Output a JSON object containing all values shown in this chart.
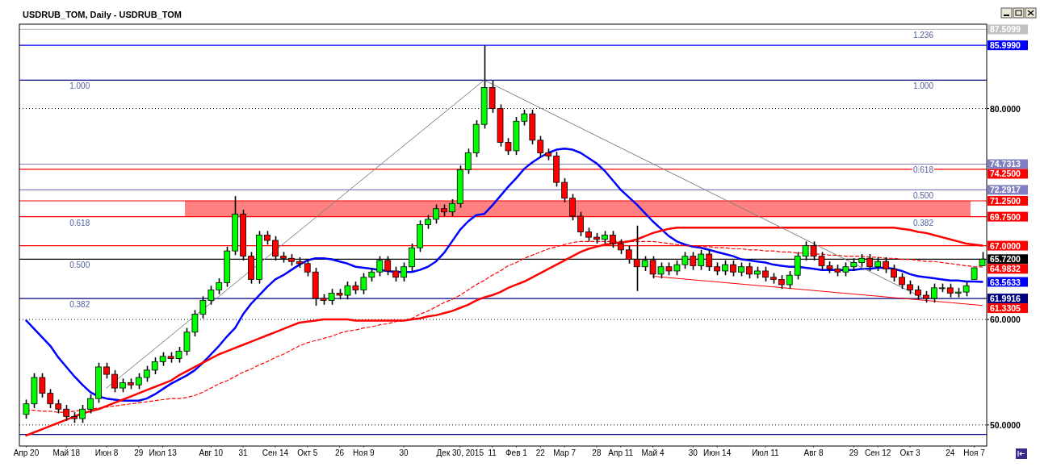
{
  "chart_data": {
    "type": "candlestick",
    "title": "USDRUB_TOM, Daily - USDRUB_TOM",
    "categories": [
      "Апр 20",
      null,
      null,
      null,
      null,
      "Май 18",
      null,
      null,
      null,
      null,
      "Июн 8",
      null,
      null,
      null,
      "29",
      null,
      null,
      "Июл 13",
      null,
      null,
      null,
      null,
      null,
      "Авг 10",
      null,
      null,
      null,
      "31",
      null,
      null,
      null,
      "Сен 14",
      null,
      null,
      null,
      "Окт 5",
      null,
      null,
      null,
      "26",
      null,
      null,
      "Ноя 9",
      null,
      null,
      null,
      null,
      "30",
      null,
      null,
      null,
      null,
      null,
      null,
      "Дек 30, 2015",
      null,
      null,
      null,
      "11",
      null,
      null,
      "Фев 1",
      null,
      null,
      "22",
      null,
      null,
      "Мар 7",
      null,
      null,
      null,
      "28",
      null,
      null,
      "Апр 11",
      null,
      null,
      null,
      "Май 4",
      null,
      null,
      null,
      null,
      "30",
      null,
      null,
      "Июн 14",
      null,
      null,
      null,
      null,
      null,
      "Июл 11",
      null,
      null,
      null,
      null,
      null,
      "Авг 8",
      null,
      null,
      null,
      null,
      "29",
      null,
      null,
      "Сен 12",
      null,
      null,
      null,
      "Окт 3",
      null,
      null,
      null,
      null,
      "24",
      null,
      null,
      "Ноя 7",
      null
    ],
    "ohlc": [
      [
        51.0,
        52.4,
        50.6,
        52.0
      ],
      [
        52.0,
        54.9,
        51.6,
        54.5
      ],
      [
        54.5,
        54.9,
        52.6,
        53.0
      ],
      [
        53.0,
        53.4,
        51.6,
        52.0
      ],
      [
        52.0,
        52.4,
        51.1,
        51.5
      ],
      [
        51.5,
        51.9,
        50.4,
        50.8
      ],
      [
        50.8,
        51.2,
        50.2,
        50.6
      ],
      [
        50.6,
        51.9,
        50.2,
        51.5
      ],
      [
        51.5,
        52.9,
        51.1,
        52.5
      ],
      [
        52.5,
        55.9,
        52.1,
        55.5
      ],
      [
        55.5,
        55.9,
        54.4,
        54.8
      ],
      [
        54.8,
        55.2,
        53.1,
        53.5
      ],
      [
        53.5,
        54.4,
        53.1,
        54.0
      ],
      [
        54.0,
        54.4,
        53.4,
        53.8
      ],
      [
        53.8,
        54.9,
        53.4,
        54.5
      ],
      [
        54.5,
        55.6,
        54.1,
        55.2
      ],
      [
        55.2,
        56.4,
        54.8,
        56.0
      ],
      [
        56.0,
        56.9,
        55.6,
        56.5
      ],
      [
        56.5,
        56.9,
        55.9,
        56.3
      ],
      [
        56.3,
        57.4,
        55.9,
        57.0
      ],
      [
        57.0,
        59.2,
        56.6,
        58.8
      ],
      [
        58.8,
        60.9,
        58.4,
        60.5
      ],
      [
        60.5,
        62.2,
        60.1,
        61.8
      ],
      [
        61.8,
        63.2,
        61.4,
        62.8
      ],
      [
        62.8,
        63.9,
        62.4,
        63.5
      ],
      [
        63.5,
        66.9,
        63.1,
        66.5
      ],
      [
        66.5,
        71.7,
        66.1,
        70.0
      ],
      [
        70.0,
        70.4,
        65.6,
        66.0
      ],
      [
        66.0,
        66.4,
        63.4,
        63.8
      ],
      [
        63.8,
        68.4,
        63.4,
        68.0
      ],
      [
        68.0,
        68.4,
        67.1,
        67.5
      ],
      [
        67.5,
        67.9,
        65.6,
        66.0
      ],
      [
        66.0,
        66.4,
        65.4,
        65.8
      ],
      [
        65.8,
        66.2,
        65.1,
        65.5
      ],
      [
        65.5,
        65.9,
        64.9,
        65.3
      ],
      [
        65.3,
        65.7,
        64.1,
        64.5
      ],
      [
        64.5,
        64.9,
        61.3,
        62.0
      ],
      [
        62.0,
        62.4,
        61.4,
        61.8
      ],
      [
        61.8,
        62.9,
        61.4,
        62.5
      ],
      [
        62.5,
        62.9,
        61.9,
        62.3
      ],
      [
        62.3,
        63.6,
        61.9,
        63.2
      ],
      [
        63.2,
        63.6,
        62.4,
        62.8
      ],
      [
        62.8,
        64.4,
        62.4,
        64.0
      ],
      [
        64.0,
        64.9,
        63.6,
        64.5
      ],
      [
        64.5,
        66.0,
        64.1,
        65.6
      ],
      [
        65.6,
        66.0,
        64.2,
        64.6
      ],
      [
        64.6,
        65.0,
        63.6,
        64.0
      ],
      [
        64.0,
        65.4,
        63.6,
        65.0
      ],
      [
        65.0,
        67.2,
        64.6,
        66.8
      ],
      [
        66.8,
        69.4,
        66.4,
        69.0
      ],
      [
        69.0,
        69.9,
        68.6,
        69.5
      ],
      [
        69.5,
        70.9,
        69.1,
        70.5
      ],
      [
        70.5,
        70.9,
        69.8,
        70.2
      ],
      [
        70.2,
        71.4,
        69.8,
        71.0
      ],
      [
        71.0,
        74.6,
        70.6,
        74.2
      ],
      [
        74.2,
        76.2,
        73.8,
        75.8
      ],
      [
        75.8,
        78.9,
        75.4,
        78.5
      ],
      [
        78.5,
        86.0,
        78.1,
        82.0
      ],
      [
        82.0,
        82.7,
        79.6,
        80.0
      ],
      [
        80.0,
        80.4,
        76.4,
        76.8
      ],
      [
        76.8,
        77.2,
        75.6,
        76.0
      ],
      [
        76.0,
        79.2,
        75.6,
        78.8
      ],
      [
        78.8,
        79.9,
        78.4,
        79.5
      ],
      [
        79.5,
        79.9,
        76.6,
        77.0
      ],
      [
        77.0,
        77.4,
        75.4,
        75.8
      ],
      [
        75.8,
        76.2,
        75.1,
        75.5
      ],
      [
        75.5,
        75.9,
        72.6,
        73.0
      ],
      [
        73.0,
        73.4,
        71.1,
        71.5
      ],
      [
        71.5,
        71.9,
        69.4,
        69.8
      ],
      [
        69.8,
        70.2,
        67.9,
        68.3
      ],
      [
        68.3,
        68.7,
        67.4,
        67.8
      ],
      [
        67.8,
        68.2,
        67.2,
        67.6
      ],
      [
        67.6,
        68.4,
        67.2,
        68.0
      ],
      [
        68.0,
        68.4,
        66.8,
        67.2
      ],
      [
        67.2,
        67.6,
        66.2,
        66.6
      ],
      [
        66.6,
        67.0,
        65.3,
        65.7
      ],
      [
        65.7,
        68.9,
        62.7,
        65.0
      ],
      [
        65.0,
        66.0,
        64.6,
        65.6
      ],
      [
        65.6,
        66.0,
        63.9,
        64.3
      ],
      [
        64.3,
        65.4,
        63.9,
        65.0
      ],
      [
        65.0,
        65.4,
        64.2,
        64.6
      ],
      [
        64.6,
        65.6,
        64.2,
        65.2
      ],
      [
        65.2,
        66.4,
        64.8,
        66.0
      ],
      [
        66.0,
        66.4,
        64.7,
        65.1
      ],
      [
        65.1,
        66.6,
        64.7,
        66.2
      ],
      [
        66.2,
        66.6,
        64.6,
        65.0
      ],
      [
        65.0,
        65.4,
        64.2,
        64.6
      ],
      [
        64.6,
        65.6,
        64.2,
        65.2
      ],
      [
        65.2,
        65.6,
        64.1,
        64.5
      ],
      [
        64.5,
        65.4,
        64.1,
        65.0
      ],
      [
        65.0,
        65.4,
        63.9,
        64.3
      ],
      [
        64.3,
        65.0,
        63.9,
        64.6
      ],
      [
        64.6,
        65.0,
        63.6,
        64.0
      ],
      [
        64.0,
        64.4,
        63.4,
        63.8
      ],
      [
        63.8,
        64.2,
        62.9,
        63.3
      ],
      [
        63.3,
        64.6,
        62.9,
        64.2
      ],
      [
        64.2,
        66.4,
        63.8,
        66.0
      ],
      [
        66.0,
        67.4,
        65.6,
        67.0
      ],
      [
        67.0,
        67.4,
        65.6,
        66.0
      ],
      [
        66.0,
        66.4,
        64.7,
        65.1
      ],
      [
        65.1,
        65.5,
        64.4,
        64.8
      ],
      [
        64.8,
        65.2,
        64.1,
        64.5
      ],
      [
        64.5,
        65.4,
        64.1,
        65.0
      ],
      [
        65.0,
        65.8,
        64.6,
        65.4
      ],
      [
        65.4,
        66.2,
        65.0,
        65.8
      ],
      [
        65.8,
        66.2,
        64.6,
        65.0
      ],
      [
        65.0,
        65.9,
        64.6,
        65.5
      ],
      [
        65.5,
        65.9,
        64.4,
        64.8
      ],
      [
        64.8,
        65.2,
        63.6,
        64.0
      ],
      [
        64.0,
        64.4,
        62.9,
        63.3
      ],
      [
        63.3,
        63.7,
        62.4,
        62.8
      ],
      [
        62.8,
        63.2,
        61.9,
        62.3
      ],
      [
        62.3,
        62.7,
        61.6,
        62.0
      ],
      [
        62.0,
        63.4,
        61.6,
        63.0
      ],
      [
        63.0,
        63.4,
        62.6,
        63.0
      ],
      [
        63.0,
        63.4,
        62.1,
        62.5
      ],
      [
        62.5,
        63.0,
        62.1,
        62.6
      ],
      [
        62.6,
        63.6,
        62.2,
        63.2
      ],
      [
        63.8,
        64.9,
        63.8,
        64.9
      ],
      [
        65.1,
        66.4,
        65.1,
        65.72
      ]
    ],
    "series": [
      {
        "type": "line",
        "color": "#0000ff",
        "values": [
          59.9,
          59.1,
          58.3,
          57.5,
          56.4,
          55.5,
          54.6,
          53.8,
          53.1,
          52.7,
          52.5,
          52.4,
          52.3,
          52.3,
          52.3,
          52.5,
          52.9,
          53.4,
          53.9,
          54.3,
          54.7,
          55.2,
          55.9,
          56.7,
          57.5,
          58.4,
          59.2,
          60.5,
          61.5,
          62.3,
          63.1,
          63.8,
          64.2,
          64.7,
          65.2,
          65.6,
          65.8,
          65.8,
          65.7,
          65.5,
          65.3,
          65.0,
          64.9,
          64.8,
          64.7,
          64.6,
          64.5,
          64.5,
          64.5,
          64.7,
          65.0,
          65.5,
          66.3,
          67.4,
          68.5,
          69.3,
          69.9,
          70.0,
          70.8,
          71.7,
          72.6,
          73.4,
          74.3,
          74.9,
          75.4,
          75.8,
          76.1,
          76.2,
          76.1,
          75.8,
          75.3,
          74.8,
          74.1,
          73.2,
          72.3,
          71.6,
          70.9,
          70.1,
          69.3,
          68.6,
          67.9,
          67.4,
          67.1,
          66.9,
          66.8,
          66.6,
          66.4,
          66.2,
          66.0,
          65.7,
          65.6,
          65.5,
          65.4,
          65.2,
          65.1,
          65.0,
          65.0,
          64.9,
          64.8,
          64.7,
          64.7,
          64.7,
          64.7,
          64.7,
          64.8,
          64.8,
          64.9,
          64.9,
          64.8,
          64.6,
          64.3,
          64.1,
          64.0,
          63.9,
          63.8,
          63.7,
          63.7,
          63.6,
          63.6,
          63.5633
        ],
        "value_labels": [
          null,
          null,
          null,
          null,
          null,
          null,
          null,
          null,
          null,
          null,
          null,
          null,
          null,
          null,
          null,
          null,
          null,
          null,
          null,
          null,
          null,
          null,
          null,
          null,
          null,
          null,
          null,
          null,
          null,
          null,
          null,
          null,
          null,
          null,
          null,
          null,
          null,
          null,
          null,
          null,
          null,
          null,
          null,
          null,
          null,
          null,
          null,
          null,
          null,
          null,
          null,
          null,
          null,
          null,
          null,
          null,
          null,
          null,
          null,
          null,
          null,
          null,
          null,
          null,
          null,
          null,
          null,
          null,
          null,
          null,
          null,
          null,
          null,
          null,
          null,
          null,
          null,
          null,
          null,
          null,
          null,
          null,
          null,
          null,
          null,
          null,
          null,
          null,
          null,
          null,
          null,
          null,
          null,
          null,
          null,
          null,
          null,
          null,
          null,
          null,
          null,
          null,
          null,
          null,
          null,
          null,
          null,
          null,
          null,
          null,
          null,
          null,
          null,
          null,
          null,
          null,
          null,
          null,
          null,
          "63.5633"
        ]
      },
      {
        "type": "line",
        "color": "#ff0000",
        "values": [
          49.0,
          49.3,
          49.6,
          49.9,
          50.2,
          50.5,
          50.8,
          51.1,
          51.3,
          51.5,
          51.8,
          52.1,
          52.4,
          52.7,
          53.0,
          53.3,
          53.6,
          53.9,
          54.2,
          54.7,
          55.1,
          55.5,
          55.9,
          56.3,
          56.7,
          57.0,
          57.3,
          57.6,
          57.9,
          58.2,
          58.5,
          58.8,
          59.1,
          59.4,
          59.7,
          59.8,
          59.9,
          60.0,
          60.0,
          60.0,
          60.0,
          59.9,
          59.9,
          59.9,
          59.9,
          59.9,
          59.9,
          59.9,
          60.0,
          60.1,
          60.3,
          60.4,
          60.6,
          60.8,
          61.1,
          61.4,
          61.8,
          62.1,
          62.3,
          62.6,
          63.0,
          63.3,
          63.6,
          64.0,
          64.4,
          64.8,
          65.2,
          65.6,
          66.0,
          66.4,
          66.7,
          66.9,
          67.1,
          67.2,
          67.3,
          67.4,
          67.6,
          67.9,
          68.2,
          68.4,
          68.6,
          68.7,
          68.7,
          68.7,
          68.7,
          68.7,
          68.7,
          68.7,
          68.7,
          68.7,
          68.7,
          68.7,
          68.7,
          68.7,
          68.7,
          68.7,
          68.7,
          68.7,
          68.7,
          68.7,
          68.7,
          68.7,
          68.7,
          68.7,
          68.7,
          68.7,
          68.7,
          68.7,
          68.7,
          68.6,
          68.5,
          68.3,
          68.2,
          68.0,
          67.8,
          67.6,
          67.4,
          67.2,
          67.1,
          67.0
        ]
      },
      {
        "type": "line",
        "color": "#ff0000",
        "line_style": "dashed",
        "values": [
          51.4,
          51.4,
          51.3,
          51.3,
          51.2,
          51.2,
          51.3,
          51.4,
          51.5,
          51.6,
          51.7,
          51.8,
          51.9,
          52.0,
          52.1,
          52.2,
          52.3,
          52.4,
          52.5,
          52.5,
          52.6,
          52.8,
          53.1,
          53.5,
          53.9,
          54.2,
          54.6,
          55.0,
          55.3,
          55.7,
          56.0,
          56.4,
          56.7,
          57.1,
          57.5,
          57.8,
          58.0,
          58.2,
          58.4,
          58.7,
          58.9,
          59.0,
          59.2,
          59.3,
          59.5,
          59.6,
          59.8,
          59.9,
          60.1,
          60.5,
          60.8,
          61.2,
          61.6,
          61.9,
          62.3,
          62.8,
          63.3,
          63.7,
          64.2,
          64.6,
          65.1,
          65.4,
          65.8,
          66.1,
          66.4,
          66.7,
          66.9,
          67.1,
          67.3,
          67.4,
          67.4,
          67.4,
          67.4,
          67.4,
          67.4,
          67.4,
          67.4,
          67.4,
          67.4,
          67.3,
          67.2,
          67.1,
          67.0,
          67.0,
          66.9,
          66.9,
          66.8,
          66.8,
          66.7,
          66.7,
          66.6,
          66.6,
          66.5,
          66.5,
          66.4,
          66.4,
          66.3,
          66.3,
          66.2,
          66.2,
          66.1,
          66.1,
          66.0,
          66.0,
          66.0,
          65.9,
          65.9,
          65.8,
          65.8,
          65.7,
          65.7,
          65.6,
          65.5,
          65.5,
          65.4,
          65.3,
          65.2,
          65.1,
          65.0,
          64.9832
        ],
        "value_labels": [
          null,
          null,
          null,
          null,
          null,
          null,
          null,
          null,
          null,
          null,
          null,
          null,
          null,
          null,
          null,
          null,
          null,
          null,
          null,
          null,
          null,
          null,
          null,
          null,
          null,
          null,
          null,
          null,
          null,
          null,
          null,
          null,
          null,
          null,
          null,
          null,
          null,
          null,
          null,
          null,
          null,
          null,
          null,
          null,
          null,
          null,
          null,
          null,
          null,
          null,
          null,
          null,
          null,
          null,
          null,
          null,
          null,
          null,
          null,
          null,
          null,
          null,
          null,
          null,
          null,
          null,
          null,
          null,
          null,
          null,
          null,
          null,
          null,
          null,
          null,
          null,
          null,
          null,
          null,
          null,
          null,
          null,
          null,
          null,
          null,
          null,
          null,
          null,
          null,
          null,
          null,
          null,
          null,
          null,
          null,
          null,
          null,
          null,
          null,
          null,
          null,
          null,
          null,
          null,
          null,
          null,
          null,
          null,
          null,
          null,
          null,
          null,
          null,
          null,
          null,
          null,
          null,
          null,
          null,
          "64.9832"
        ]
      },
      {
        "type": "line",
        "color": "#808080",
        "values": [
          null,
          null,
          null,
          null,
          null,
          null,
          null,
          null,
          null,
          null,
          53.5,
          null,
          null,
          null,
          null,
          null,
          null,
          null,
          null,
          null,
          null,
          null,
          null,
          null,
          null,
          null,
          null,
          null,
          null,
          null,
          null,
          null,
          null,
          null,
          null,
          null,
          null,
          null,
          null,
          null,
          null,
          null,
          null,
          null,
          null,
          null,
          null,
          null,
          null,
          null,
          null,
          null,
          null,
          null,
          null,
          null,
          null,
          82.7,
          null,
          null,
          null,
          null,
          null,
          null,
          null,
          null,
          null,
          null,
          null,
          null,
          null,
          null,
          null,
          null,
          null,
          null,
          null,
          null,
          null,
          null,
          null,
          null,
          null,
          null,
          null,
          null,
          null,
          null,
          null,
          null,
          null,
          null,
          null,
          null,
          null,
          null,
          null,
          null,
          null,
          null,
          null,
          null,
          null,
          null,
          null,
          null,
          null,
          null,
          null,
          null,
          null,
          null,
          61.9,
          null,
          null,
          null,
          null,
          null,
          null,
          null
        ]
      },
      {
        "type": "line",
        "color": "#ff0000",
        "values": [
          null,
          null,
          null,
          null,
          null,
          null,
          null,
          null,
          null,
          null,
          null,
          null,
          null,
          null,
          null,
          null,
          null,
          null,
          null,
          null,
          null,
          null,
          null,
          null,
          null,
          null,
          null,
          null,
          null,
          null,
          null,
          null,
          null,
          null,
          null,
          null,
          null,
          null,
          null,
          null,
          null,
          null,
          null,
          null,
          null,
          null,
          null,
          null,
          null,
          null,
          null,
          null,
          null,
          null,
          null,
          null,
          null,
          null,
          null,
          null,
          null,
          null,
          null,
          null,
          null,
          null,
          null,
          null,
          null,
          null,
          null,
          null,
          null,
          null,
          null,
          null,
          null,
          null,
          64.1,
          null,
          null,
          null,
          null,
          null,
          null,
          null,
          null,
          null,
          null,
          null,
          null,
          null,
          null,
          null,
          null,
          null,
          null,
          null,
          null,
          null,
          null,
          null,
          null,
          null,
          null,
          null,
          null,
          null,
          null,
          null,
          null,
          null,
          null,
          null,
          null,
          null,
          null,
          null,
          null,
          61.3305
        ],
        "value_labels": [
          null,
          null,
          null,
          null,
          null,
          null,
          null,
          null,
          null,
          null,
          null,
          null,
          null,
          null,
          null,
          null,
          null,
          null,
          null,
          null,
          null,
          null,
          null,
          null,
          null,
          null,
          null,
          null,
          null,
          null,
          null,
          null,
          null,
          null,
          null,
          null,
          null,
          null,
          null,
          null,
          null,
          null,
          null,
          null,
          null,
          null,
          null,
          null,
          null,
          null,
          null,
          null,
          null,
          null,
          null,
          null,
          null,
          null,
          null,
          null,
          null,
          null,
          null,
          null,
          null,
          null,
          null,
          null,
          null,
          null,
          null,
          null,
          null,
          null,
          null,
          null,
          null,
          null,
          null,
          null,
          null,
          null,
          null,
          null,
          null,
          null,
          null,
          null,
          null,
          null,
          null,
          null,
          null,
          null,
          null,
          null,
          null,
          null,
          null,
          null,
          null,
          null,
          null,
          null,
          null,
          null,
          null,
          null,
          null,
          null,
          null,
          null,
          null,
          null,
          null,
          null,
          null,
          null,
          null,
          "61.3305"
        ]
      }
    ],
    "ylim": [
      48,
      88
    ],
    "yticks": [
      {
        "value": 50,
        "label": "50.0000"
      },
      {
        "value": 60,
        "label": "60.0000"
      },
      {
        "value": 80,
        "label": "80.0000"
      }
    ],
    "grid": "y",
    "bands": [
      {
        "axis": "y",
        "from": 69.75,
        "to": 71.25,
        "color": "#ff8080"
      }
    ],
    "ref_lines": [
      {
        "axis": "y",
        "value": 87.5099,
        "label": "87.5099",
        "color": "#c0c0c0"
      },
      {
        "axis": "y",
        "value": 85.999,
        "label": "85.9990",
        "color": "#0000ff"
      },
      {
        "axis": "y",
        "value": 82.7,
        "color": "#000080"
      },
      {
        "axis": "y",
        "value": 74.7313,
        "label": "74.7313",
        "color": "#8080c0"
      },
      {
        "axis": "y",
        "value": 74.25,
        "label": "74.2500",
        "color": "#ff0000"
      },
      {
        "axis": "y",
        "value": 72.2917,
        "label": "72.2917",
        "color": "#8080c0"
      },
      {
        "axis": "y",
        "value": 71.25,
        "label": "71.2500",
        "color": "#ff0000"
      },
      {
        "axis": "y",
        "value": 69.75,
        "label": "69.7500",
        "color": "#ff0000"
      },
      {
        "axis": "y",
        "value": 67.0,
        "label": "67.0000",
        "color": "#ff0000"
      },
      {
        "axis": "y",
        "value": 65.72,
        "label": "65.7200",
        "color": "#000000"
      },
      {
        "axis": "y",
        "value": 61.9916,
        "label": "61.9916",
        "color": "#000080"
      },
      {
        "axis": "y",
        "value": 49.1,
        "color": "#000080"
      }
    ],
    "annotations": [
      {
        "text": "1.000",
        "x": "Май 18",
        "y": 82.7
      },
      {
        "text": "0.618",
        "x": "Май 18",
        "y": 69.75
      },
      {
        "text": "0.500",
        "x": "Май 18",
        "y": 65.72
      },
      {
        "text": "0.382",
        "x": "Май 18",
        "y": 61.9916
      },
      {
        "text": "1.236",
        "x": "Окт 3",
        "y": 87.5099
      },
      {
        "text": "1.000",
        "x": "Окт 3",
        "y": 82.7
      },
      {
        "text": "0.618",
        "x": "Окт 3",
        "y": 74.7313
      },
      {
        "text": "0.500",
        "x": "Окт 3",
        "y": 72.2917
      },
      {
        "text": "0.382",
        "x": "Окт 3",
        "y": 69.75
      }
    ]
  }
}
